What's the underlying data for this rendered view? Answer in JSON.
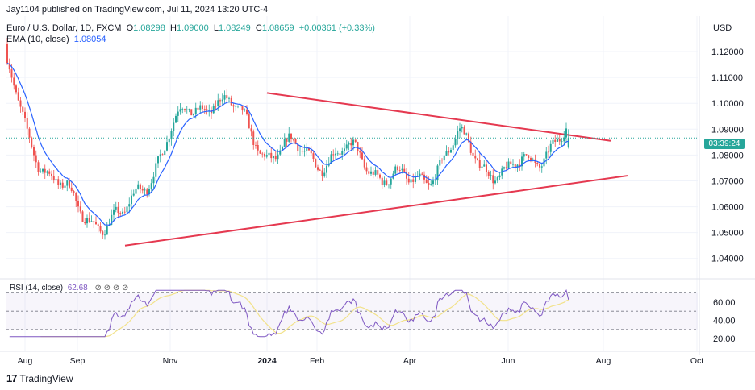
{
  "attribution": "Jay1104 published on TradingView.com, Jul 11, 2024 13:20 UTC-4",
  "legend": {
    "symbol": "Euro / U.S. Dollar, 1D, FXCM",
    "open_label": "O",
    "open": "1.08298",
    "high_label": "H",
    "high": "1.09000",
    "low_label": "L",
    "low": "1.08249",
    "close_label": "C",
    "close": "1.08659",
    "change": "+0.00361 (+0.33%)",
    "ema_label": "EMA (10, close)",
    "ema_value": "1.08054",
    "rsi_label": "RSI (14, close)",
    "rsi_value": "62.68"
  },
  "currency": "USD",
  "countdown": "03:39:24",
  "brand": {
    "mark": "17",
    "name": "TradingView"
  },
  "colors": {
    "up": "#26a69a",
    "down": "#ef5350",
    "ema": "#2962ff",
    "trendline": "#e53950",
    "rsi": "#7e57c2",
    "rsi_ma": "#f2e28a"
  },
  "chart_data": {
    "type": "candlestick",
    "price_axis": {
      "ticks": [
        "1.12000",
        "1.11000",
        "1.10000",
        "1.09000",
        "1.08000",
        "1.07000",
        "1.06000",
        "1.05000",
        "1.04000"
      ],
      "range": [
        1.034,
        1.125
      ]
    },
    "time_axis": {
      "labels": [
        "Aug",
        "Sep",
        "Nov",
        "2024",
        "Feb",
        "Apr",
        "Jun",
        "Aug",
        "Oct"
      ],
      "bold": "2024"
    },
    "current_price": 1.08659,
    "candles_range": [
      "Jul 2023",
      "Jul 2024"
    ],
    "monthly_closes": [
      {
        "t": "Jul 2023",
        "c": 1.121
      },
      {
        "t": "Aug 2023",
        "c": 1.088
      },
      {
        "t": "Sep 2023",
        "c": 1.0575
      },
      {
        "t": "Oct 2023",
        "c": 1.054
      },
      {
        "t": "Nov 2023",
        "c": 1.089
      },
      {
        "t": "Dec 2023",
        "c": 1.104
      },
      {
        "t": "Jan 2024",
        "c": 1.082
      },
      {
        "t": "Feb 2024",
        "c": 1.08
      },
      {
        "t": "Mar 2024",
        "c": 1.079
      },
      {
        "t": "Apr 2024",
        "c": 1.067
      },
      {
        "t": "May 2024",
        "c": 1.085
      },
      {
        "t": "Jun 2024",
        "c": 1.071
      },
      {
        "t": "Jul 2024",
        "c": 1.0866
      }
    ],
    "trendlines": [
      {
        "name": "",
        "from": {
          "t": "Jan 2024",
          "price": 1.104
        },
        "to": {
          "t": "Aug 2024",
          "price": 1.0855
        }
      },
      {
        "name": "",
        "from": {
          "t": "Oct 2023",
          "price": 1.045
        },
        "to": {
          "t": "Aug 2024",
          "price": 1.072
        }
      }
    ],
    "rsi": {
      "ticks": [
        "60.00",
        "40.00",
        "20.00"
      ],
      "levels": [
        70,
        50,
        30
      ],
      "range": [
        20,
        75
      ],
      "last": 62.68
    }
  }
}
